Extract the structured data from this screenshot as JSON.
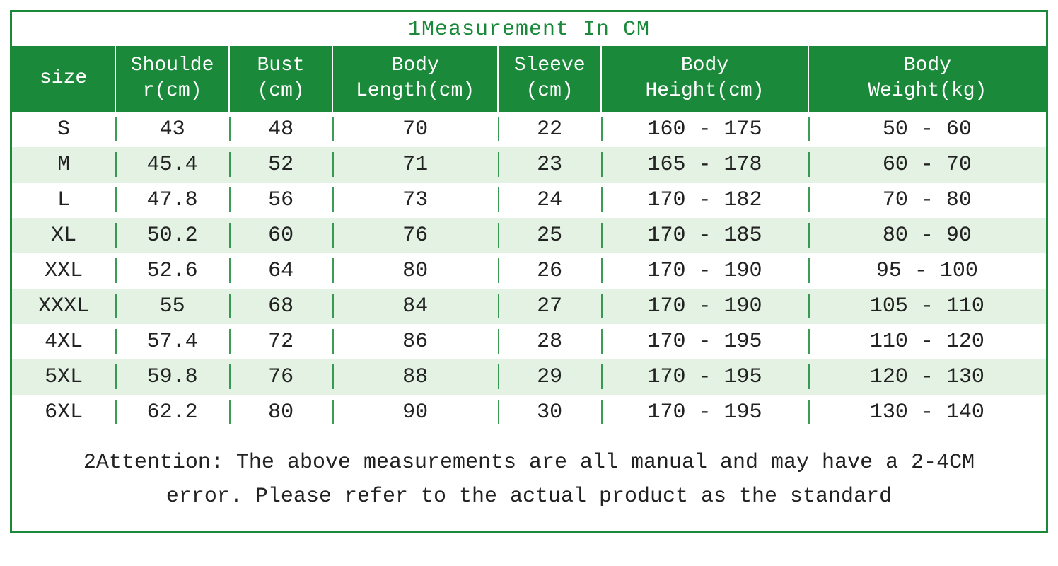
{
  "title": "1Measurement In CM",
  "colors": {
    "brand": "#1a8a3a",
    "row_alt": "#e3f2e3",
    "row_base": "#ffffff",
    "text": "#222222"
  },
  "columns": [
    {
      "label": "size",
      "width": "10%"
    },
    {
      "label": "Shoulder(cm)",
      "width": "11%"
    },
    {
      "label": "Bust (cm)",
      "width": "10%"
    },
    {
      "label": "Body Length(cm)",
      "width": "16%"
    },
    {
      "label": "Sleeve (cm)",
      "width": "10%"
    },
    {
      "label": "Body Height(cm)",
      "width": "20%"
    },
    {
      "label": "Body Weight(kg)",
      "width": "23%"
    }
  ],
  "col_labels": {
    "c0": "size",
    "c1_a": "Shoulde",
    "c1_b": "r(cm)",
    "c2_a": "Bust",
    "c2_b": "(cm)",
    "c3_a": "Body",
    "c3_b": "Length(cm)",
    "c4_a": "Sleeve",
    "c4_b": "(cm)",
    "c5_a": "Body",
    "c5_b": "Height(cm)",
    "c6_a": "Body",
    "c6_b": "Weight(kg)"
  },
  "rows": [
    {
      "size": "S",
      "shoulder": "43",
      "bust": "48",
      "body_length": "70",
      "sleeve": "22",
      "height": "160 - 175",
      "weight": "50 - 60"
    },
    {
      "size": "M",
      "shoulder": "45.4",
      "bust": "52",
      "body_length": "71",
      "sleeve": "23",
      "height": "165 - 178",
      "weight": "60 - 70"
    },
    {
      "size": "L",
      "shoulder": "47.8",
      "bust": "56",
      "body_length": "73",
      "sleeve": "24",
      "height": "170 - 182",
      "weight": "70 - 80"
    },
    {
      "size": "XL",
      "shoulder": "50.2",
      "bust": "60",
      "body_length": "76",
      "sleeve": "25",
      "height": "170 - 185",
      "weight": "80 - 90"
    },
    {
      "size": "XXL",
      "shoulder": "52.6",
      "bust": "64",
      "body_length": "80",
      "sleeve": "26",
      "height": "170 - 190",
      "weight": "95 - 100"
    },
    {
      "size": "XXXL",
      "shoulder": "55",
      "bust": "68",
      "body_length": "84",
      "sleeve": "27",
      "height": "170 - 190",
      "weight": "105 - 110"
    },
    {
      "size": "4XL",
      "shoulder": "57.4",
      "bust": "72",
      "body_length": "86",
      "sleeve": "28",
      "height": "170 - 195",
      "weight": "110 - 120"
    },
    {
      "size": "5XL",
      "shoulder": "59.8",
      "bust": "76",
      "body_length": "88",
      "sleeve": "29",
      "height": "170 - 195",
      "weight": "120 - 130"
    },
    {
      "size": "6XL",
      "shoulder": "62.2",
      "bust": "80",
      "body_length": "90",
      "sleeve": "30",
      "height": "170 - 195",
      "weight": "130 - 140"
    }
  ],
  "footer": "2Attention: The above measurements are all manual and may have a 2-4CM error. Please refer to the actual product as the standard"
}
